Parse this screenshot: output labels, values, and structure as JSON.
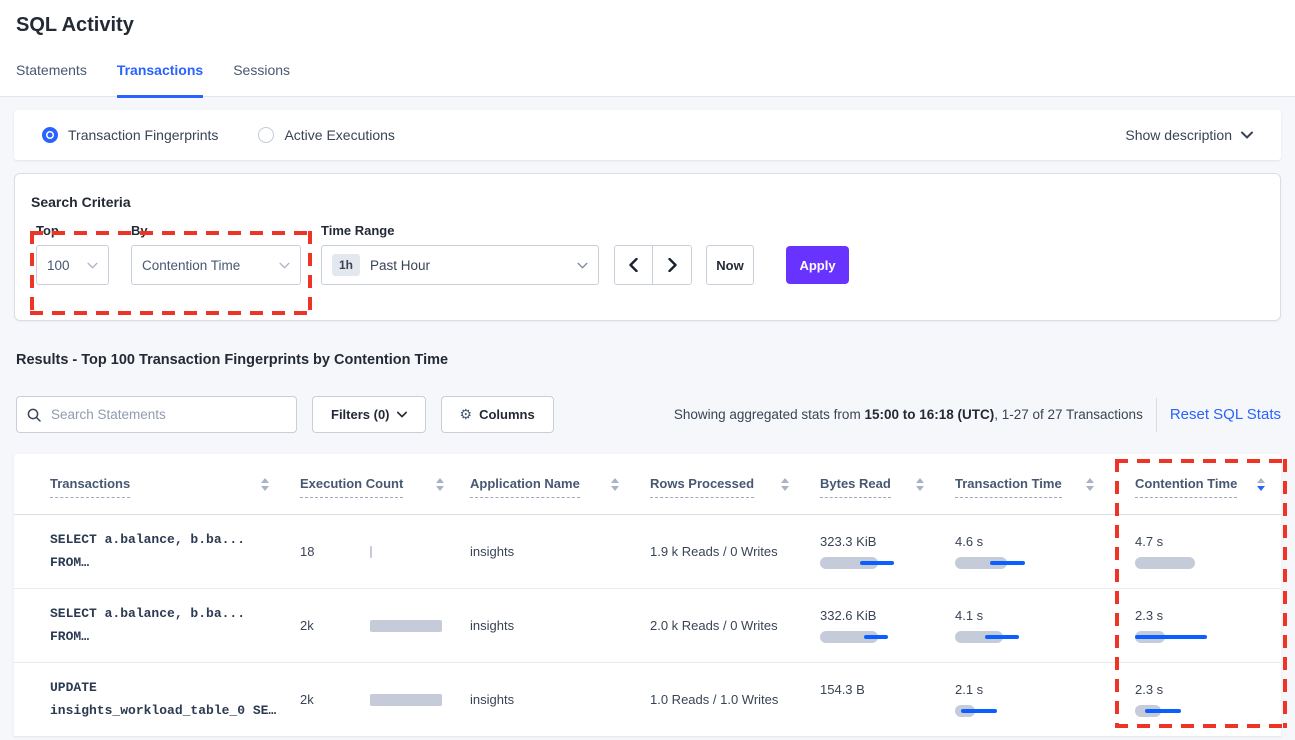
{
  "page": {
    "title": "SQL Activity"
  },
  "tabs": [
    {
      "label": "Statements",
      "active": false
    },
    {
      "label": "Transactions",
      "active": true
    },
    {
      "label": "Sessions",
      "active": false
    }
  ],
  "view_toggle": {
    "options": [
      {
        "label": "Transaction Fingerprints",
        "selected": true
      },
      {
        "label": "Active Executions",
        "selected": false
      }
    ],
    "show_description_label": "Show description"
  },
  "search_criteria": {
    "title": "Search Criteria",
    "top": {
      "label": "Top",
      "value": "100"
    },
    "by": {
      "label": "By",
      "value": "Contention Time"
    },
    "time_range": {
      "label": "Time Range",
      "badge": "1h",
      "value": "Past Hour"
    },
    "now_label": "Now",
    "apply_label": "Apply"
  },
  "results": {
    "heading": "Results - Top 100 Transaction Fingerprints by Contention Time",
    "search_placeholder": "Search Statements",
    "filters_label": "Filters (0)",
    "columns_label": "Columns",
    "stats_prefix": "Showing aggregated stats from ",
    "stats_period": "15:00 to 16:18 (UTC)",
    "stats_suffix": ", 1-27 of 27 Transactions",
    "reset_label": "Reset SQL Stats"
  },
  "icons": {
    "gear": "⚙",
    "search": "magnifier",
    "chevron_down": "chevron-down",
    "chevron_left": "chevron-left",
    "chevron_right": "chevron-right",
    "sort": "up-down-triangles"
  },
  "colors": {
    "accent_blue": "#2962ff",
    "bar_blue": "#0b5fff",
    "bar_gray": "#c6cbda",
    "apply_purple": "#6933ff",
    "annotation_red": "#ee3424"
  },
  "table": {
    "columns": [
      {
        "label": "Transactions",
        "sort": "none"
      },
      {
        "label": "Execution Count",
        "sort": "none"
      },
      {
        "label": "Application Name",
        "sort": "none"
      },
      {
        "label": "Rows Processed",
        "sort": "none"
      },
      {
        "label": "Bytes Read",
        "sort": "none"
      },
      {
        "label": "Transaction Time",
        "sort": "none"
      },
      {
        "label": "Contention Time",
        "sort": "desc"
      }
    ],
    "rows": [
      {
        "transaction": {
          "line1": "SELECT a.balance, b.ba...",
          "line2": "FROM…"
        },
        "execution_count": {
          "value": "18",
          "bar": 2
        },
        "application_name": "insights",
        "rows_processed": "1.9 k Reads / 0 Writes",
        "bytes_read": {
          "value": "323.3 KiB",
          "bar": 58,
          "line": [
            40,
            74
          ]
        },
        "transaction_time": {
          "value": "4.6 s",
          "bar": 52,
          "line": [
            35,
            70
          ]
        },
        "contention_time": {
          "value": "4.7 s",
          "bar": 60,
          "line": null
        }
      },
      {
        "transaction": {
          "line1": "SELECT a.balance, b.ba...",
          "line2": "FROM…"
        },
        "execution_count": {
          "value": "2k",
          "bar": 72
        },
        "application_name": "insights",
        "rows_processed": "2.0 k Reads / 0 Writes",
        "bytes_read": {
          "value": "332.6 KiB",
          "bar": 58,
          "line": [
            44,
            68
          ]
        },
        "transaction_time": {
          "value": "4.1 s",
          "bar": 48,
          "line": [
            30,
            64
          ]
        },
        "contention_time": {
          "value": "2.3 s",
          "bar": 30,
          "line": [
            0,
            72
          ]
        }
      },
      {
        "transaction": {
          "line1": "UPDATE",
          "line2": "insights_workload_table_0 SE…"
        },
        "execution_count": {
          "value": "2k",
          "bar": 72
        },
        "application_name": "insights",
        "rows_processed": "1.0 Reads / 1.0 Writes",
        "bytes_read": {
          "value": "154.3 B",
          "bar": 0,
          "line": null
        },
        "transaction_time": {
          "value": "2.1 s",
          "bar": 20,
          "line": [
            6,
            42
          ]
        },
        "contention_time": {
          "value": "2.3 s",
          "bar": 26,
          "line": [
            10,
            46
          ]
        }
      }
    ]
  }
}
